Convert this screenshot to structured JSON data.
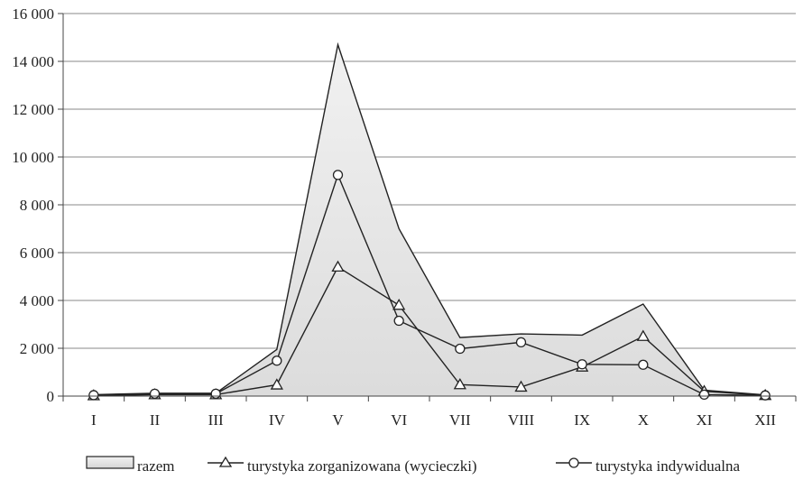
{
  "chart_data": {
    "type": "line",
    "categories": [
      "I",
      "II",
      "III",
      "IV",
      "V",
      "VI",
      "VII",
      "VIII",
      "IX",
      "X",
      "XI",
      "XII"
    ],
    "ylim": [
      0,
      16000
    ],
    "yticks": [
      0,
      2000,
      4000,
      6000,
      8000,
      10000,
      12000,
      14000,
      16000
    ],
    "ytick_labels": [
      "0",
      "2 000",
      "4 000",
      "6 000",
      "8 000",
      "10 000",
      "12 000",
      "14 000",
      "16 000"
    ],
    "grid": "horizontal",
    "legend_position": "bottom",
    "series": [
      {
        "name": "razem",
        "style": "area",
        "fill": "#e6e6e6",
        "line": "#222222",
        "values": [
          60,
          120,
          120,
          1950,
          14700,
          7000,
          2450,
          2600,
          2550,
          3850,
          250,
          50
        ]
      },
      {
        "name": "turystyka zorganizowana (wycieczki)",
        "style": "line",
        "marker": "triangle",
        "line": "#222222",
        "values": [
          20,
          60,
          60,
          470,
          5400,
          3800,
          480,
          380,
          1220,
          2500,
          200,
          30
        ]
      },
      {
        "name": "turystyka indywidualna",
        "style": "line",
        "marker": "circle",
        "line": "#222222",
        "values": [
          40,
          100,
          100,
          1480,
          9250,
          3150,
          1980,
          2250,
          1330,
          1310,
          60,
          30
        ]
      }
    ]
  }
}
